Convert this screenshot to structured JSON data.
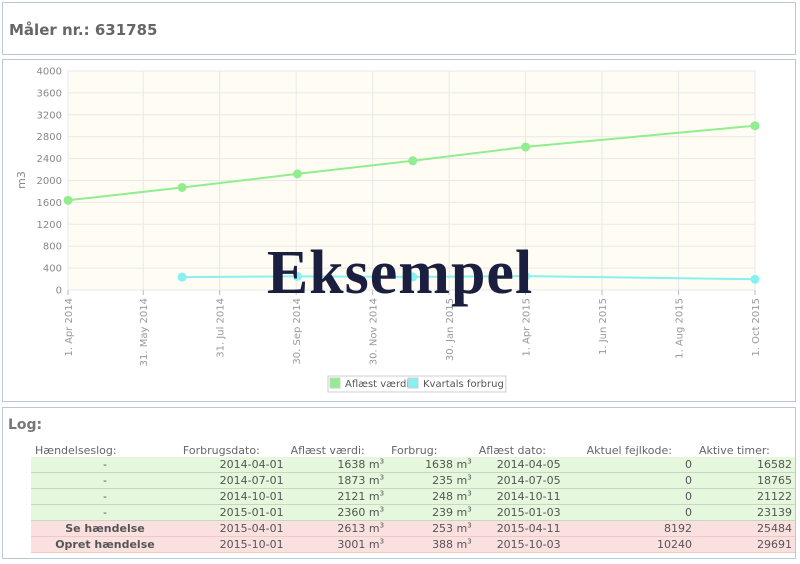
{
  "header": {
    "meter_label": "Måler nr.: 631785"
  },
  "chart_data": {
    "type": "line",
    "ylabel": "m3",
    "ylim": [
      0,
      4000
    ],
    "yticks": [
      "0",
      "400",
      "800",
      "1200",
      "1600",
      "2000",
      "2400",
      "2800",
      "3200",
      "3600",
      "4000"
    ],
    "x_range": [
      "2014-04-01",
      "2015-10-01"
    ],
    "xticks": [
      {
        "date": "2014-04-01",
        "label": "1. Apr 2014"
      },
      {
        "date": "2014-05-31",
        "label": "31. May 2014"
      },
      {
        "date": "2014-07-31",
        "label": "31. Jul 2014"
      },
      {
        "date": "2014-09-30",
        "label": "30. Sep 2014"
      },
      {
        "date": "2014-11-30",
        "label": "30. Nov 2014"
      },
      {
        "date": "2015-01-30",
        "label": "30. Jan 2015"
      },
      {
        "date": "2015-04-01",
        "label": "1. Apr 2015"
      },
      {
        "date": "2015-06-01",
        "label": "1. Jun 2015"
      },
      {
        "date": "2015-08-01",
        "label": "1. Aug 2015"
      },
      {
        "date": "2015-10-01",
        "label": "1. Oct 2015"
      }
    ],
    "grid": true,
    "legend_position": "bottom-center",
    "series": [
      {
        "name": "Aflæst værdi",
        "color": "#90ee90",
        "points": [
          [
            "2014-04-01",
            1638
          ],
          [
            "2014-07-01",
            1873
          ],
          [
            "2014-10-01",
            2121
          ],
          [
            "2015-01-01",
            2360
          ],
          [
            "2015-04-01",
            2613
          ],
          [
            "2015-10-01",
            3001
          ]
        ]
      },
      {
        "name": "Kvartals forbrug",
        "color": "#87f0f0",
        "points": [
          [
            "2014-07-01",
            235
          ],
          [
            "2014-10-01",
            248
          ],
          [
            "2015-01-01",
            239
          ],
          [
            "2015-04-01",
            253
          ],
          [
            "2015-10-01",
            196
          ]
        ]
      }
    ]
  },
  "watermark": "Eksempel",
  "log": {
    "title": "Log:",
    "columns": [
      "Hændelseslog:",
      "Forbrugsdato:",
      "Aflæst værdi:",
      "Forbrug:",
      "Aflæst dato:",
      "Aktuel fejlkode:",
      "Aktive timer:"
    ],
    "unit": "m",
    "unit_exp": "3",
    "rows": [
      {
        "event": "-",
        "date": "2014-04-01",
        "reading": "1638",
        "consumption": "1638",
        "read_date": "2014-04-05",
        "error": "0",
        "hours": "16582",
        "type": "normal"
      },
      {
        "event": "-",
        "date": "2014-07-01",
        "reading": "1873",
        "consumption": "235",
        "read_date": "2014-07-05",
        "error": "0",
        "hours": "18765",
        "type": "normal"
      },
      {
        "event": "-",
        "date": "2014-10-01",
        "reading": "2121",
        "consumption": "248",
        "read_date": "2014-10-11",
        "error": "0",
        "hours": "21122",
        "type": "normal"
      },
      {
        "event": "-",
        "date": "2015-01-01",
        "reading": "2360",
        "consumption": "239",
        "read_date": "2015-01-03",
        "error": "0",
        "hours": "23139",
        "type": "normal"
      },
      {
        "event": "Se hændelse",
        "date": "2015-04-01",
        "reading": "2613",
        "consumption": "253",
        "read_date": "2015-04-11",
        "error": "8192",
        "hours": "25484",
        "type": "event"
      },
      {
        "event": "Opret hændelse",
        "date": "2015-10-01",
        "reading": "3001",
        "consumption": "388",
        "read_date": "2015-10-03",
        "error": "10240",
        "hours": "29691",
        "type": "event"
      }
    ]
  }
}
